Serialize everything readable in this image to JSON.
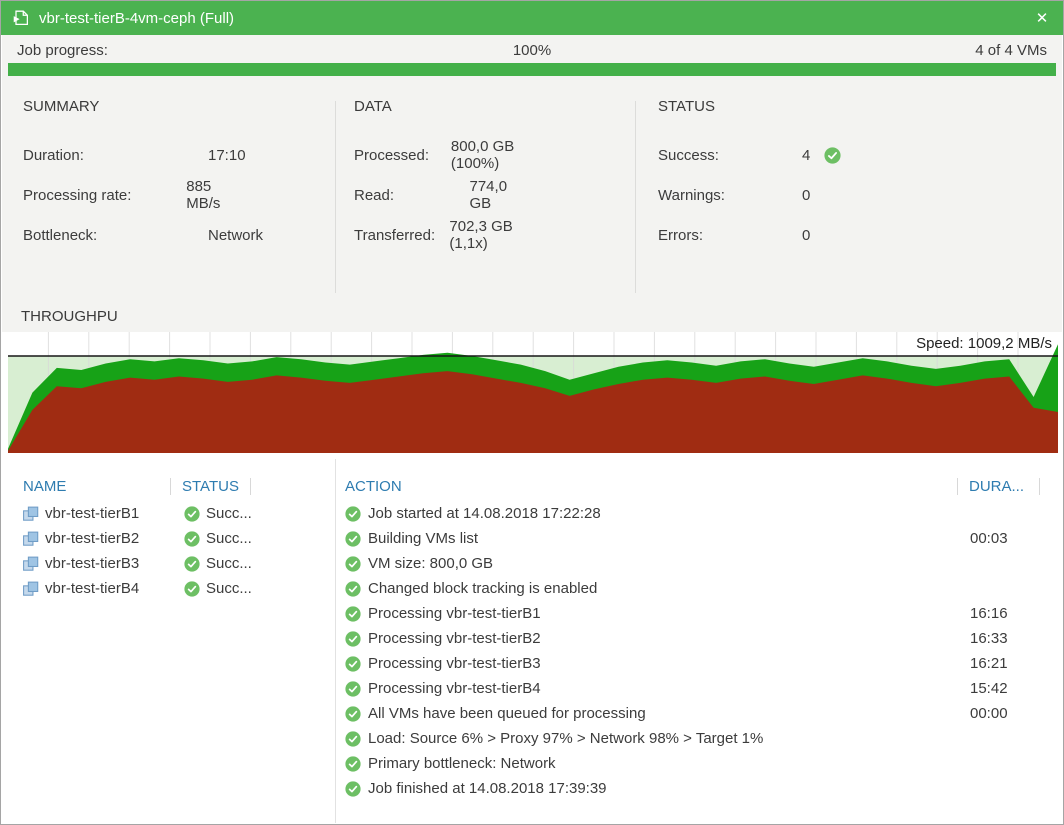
{
  "titlebar": {
    "title": "vbr-test-tierB-4vm-ceph (Full)",
    "close_label": "✕"
  },
  "progress": {
    "label": "Job progress:",
    "percent_text": "100%",
    "right_text": "4 of 4 VMs",
    "percent_value": 100
  },
  "panels": {
    "summary": {
      "heading": "SUMMARY",
      "rows": [
        {
          "label": "Duration:",
          "value": "17:10"
        },
        {
          "label": "Processing rate:",
          "value": "885 MB/s"
        },
        {
          "label": "Bottleneck:",
          "value": "Network"
        }
      ]
    },
    "data": {
      "heading": "DATA",
      "rows": [
        {
          "label": "Processed:",
          "value": "800,0 GB (100%)"
        },
        {
          "label": "Read:",
          "value": "774,0 GB"
        },
        {
          "label": "Transferred:",
          "value": "702,3 GB (1,1x)"
        }
      ]
    },
    "status": {
      "heading": "STATUS",
      "rows": [
        {
          "label": "Success:",
          "value": "4"
        },
        {
          "label": "Warnings:",
          "value": "0"
        },
        {
          "label": "Errors:",
          "value": "0"
        }
      ]
    }
  },
  "throughput": {
    "heading": "THROUGHPU",
    "speed_label": "Speed: 1009,2 MB/s"
  },
  "chart_data": {
    "type": "area",
    "title": "THROUGHPU",
    "annotation": "Speed: 1009,2 MB/s",
    "unit": "MB/s",
    "x": "time samples, unlabeled axis",
    "ylim": [
      0,
      1050
    ],
    "top_line_value": 900,
    "plot_background": "#d8eed2",
    "grid": true,
    "legend_position": "none",
    "series": [
      {
        "name": "green_area_throughput",
        "color": "#17a217",
        "values": [
          40,
          560,
          790,
          770,
          830,
          870,
          850,
          880,
          860,
          830,
          850,
          890,
          870,
          840,
          820,
          850,
          880,
          910,
          930,
          900,
          860,
          820,
          760,
          680,
          740,
          800,
          840,
          860,
          840,
          810,
          850,
          870,
          830,
          800,
          840,
          880,
          850,
          810,
          780,
          810,
          850,
          870,
          520,
          1009
        ]
      },
      {
        "name": "red_area_load",
        "color": "#a02c12",
        "values": [
          20,
          400,
          620,
          600,
          660,
          700,
          680,
          710,
          690,
          660,
          680,
          720,
          700,
          670,
          650,
          680,
          710,
          740,
          760,
          730,
          690,
          650,
          600,
          530,
          590,
          640,
          680,
          700,
          680,
          650,
          690,
          710,
          670,
          640,
          680,
          720,
          690,
          650,
          620,
          650,
          690,
          710,
          420,
          380
        ]
      }
    ]
  },
  "vm_list": {
    "headers": [
      "NAME",
      "STATUS"
    ],
    "rows": [
      {
        "name": "vbr-test-tierB1",
        "status": "Succ..."
      },
      {
        "name": "vbr-test-tierB2",
        "status": "Succ..."
      },
      {
        "name": "vbr-test-tierB3",
        "status": "Succ..."
      },
      {
        "name": "vbr-test-tierB4",
        "status": "Succ..."
      }
    ]
  },
  "actions": {
    "headers": {
      "action": "ACTION",
      "duration": "DURA..."
    },
    "rows": [
      {
        "text": "Job started at 14.08.2018 17:22:28",
        "duration": ""
      },
      {
        "text": "Building VMs list",
        "duration": "00:03"
      },
      {
        "text": "VM size: 800,0 GB",
        "duration": ""
      },
      {
        "text": "Changed block tracking is enabled",
        "duration": ""
      },
      {
        "text": "Processing vbr-test-tierB1",
        "duration": "16:16"
      },
      {
        "text": "Processing vbr-test-tierB2",
        "duration": "16:33"
      },
      {
        "text": "Processing vbr-test-tierB3",
        "duration": "16:21"
      },
      {
        "text": "Processing vbr-test-tierB4",
        "duration": "15:42"
      },
      {
        "text": "All VMs have been queued for processing",
        "duration": "00:00"
      },
      {
        "text": "Load: Source 6% > Proxy 97% > Network 98% > Target 1%",
        "duration": ""
      },
      {
        "text": "Primary bottleneck: Network",
        "duration": ""
      },
      {
        "text": "Job finished at 14.08.2018 17:39:39",
        "duration": ""
      }
    ]
  },
  "colors": {
    "titlebar_green": "#4bb250",
    "progress_green": "#43b049",
    "header_blue": "#2e7cb0",
    "check_green": "#6dbf64",
    "chart_green": "#17a217",
    "chart_red": "#a02c12",
    "chart_bg_light_green": "#d8eed2"
  }
}
